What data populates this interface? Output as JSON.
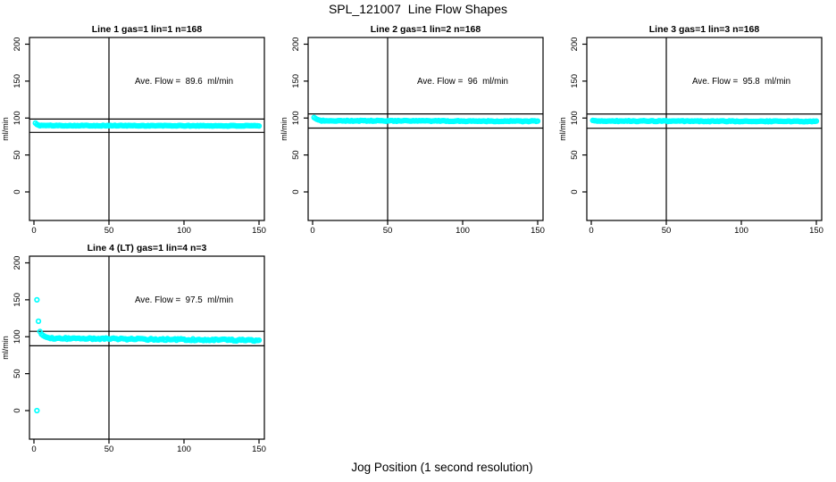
{
  "figure": {
    "title": "SPL_121007  Line Flow Shapes",
    "xlabel": "Jog Position (1 second resolution)",
    "background_color": "#FFFFFF",
    "axis_color": "#000000",
    "marker_color": "#00FFFF"
  },
  "chart_data": [
    {
      "type": "scatter",
      "title": "Line 1 gas=1 lin=1 n=168",
      "annotation": "Ave. Flow =  89.6  ml/min",
      "annotation_pos": {
        "x": 100,
        "y": 150
      },
      "ave_flow": 89.6,
      "n": 168,
      "xlim": [
        0,
        150
      ],
      "ylim": [
        0,
        200
      ],
      "xticks": [
        0,
        50,
        100,
        150
      ],
      "yticks": [
        0,
        50,
        100,
        150,
        200
      ],
      "ylabel": "ml/min",
      "grid": false,
      "vline_x": 50,
      "hlines_y": [
        98.6,
        80.6
      ],
      "series": {
        "name": "flow",
        "marker": "open-circle",
        "color": "#00FFFF",
        "x_step": 1,
        "lead_points": [
          [
            1,
            93.2
          ],
          [
            2,
            91.3
          ],
          [
            3,
            90.4
          ]
        ],
        "steady_x_start": 4,
        "steady_x_end": 150,
        "steady_y_start": 89.9,
        "steady_y_end": 89.4,
        "noise_amp": 0.45,
        "outlier_points": []
      }
    },
    {
      "type": "scatter",
      "title": "Line 2 gas=1 lin=2 n=168",
      "annotation": "Ave. Flow =  96  ml/min",
      "annotation_pos": {
        "x": 100,
        "y": 150
      },
      "ave_flow": 96,
      "n": 168,
      "xlim": [
        0,
        150
      ],
      "ylim": [
        0,
        200
      ],
      "xticks": [
        0,
        50,
        100,
        150
      ],
      "yticks": [
        0,
        50,
        100,
        150,
        200
      ],
      "ylabel": "ml/min",
      "grid": false,
      "vline_x": 50,
      "hlines_y": [
        105.6,
        86.4
      ],
      "series": {
        "name": "flow",
        "marker": "open-circle",
        "color": "#00FFFF",
        "x_step": 1,
        "lead_points": [
          [
            1,
            100.8
          ],
          [
            2,
            99.3
          ],
          [
            3,
            98.2
          ],
          [
            4,
            97.4
          ],
          [
            5,
            96.9
          ]
        ],
        "steady_x_start": 6,
        "steady_x_end": 150,
        "steady_y_start": 96.4,
        "steady_y_end": 95.7,
        "noise_amp": 0.6,
        "outlier_points": []
      }
    },
    {
      "type": "scatter",
      "title": "Line 3 gas=1 lin=3 n=168",
      "annotation": "Ave. Flow =  95.8  ml/min",
      "annotation_pos": {
        "x": 100,
        "y": 150
      },
      "ave_flow": 95.8,
      "n": 168,
      "xlim": [
        0,
        150
      ],
      "ylim": [
        0,
        200
      ],
      "xticks": [
        0,
        50,
        100,
        150
      ],
      "yticks": [
        0,
        50,
        100,
        150,
        200
      ],
      "ylabel": "ml/min",
      "grid": false,
      "vline_x": 50,
      "hlines_y": [
        105.4,
        86.2
      ],
      "series": {
        "name": "flow",
        "marker": "open-circle",
        "color": "#00FFFF",
        "x_step": 1,
        "lead_points": [
          [
            1,
            96.8
          ]
        ],
        "steady_x_start": 2,
        "steady_x_end": 150,
        "steady_y_start": 96.0,
        "steady_y_end": 95.5,
        "noise_amp": 0.55,
        "outlier_points": []
      }
    },
    {
      "type": "scatter",
      "title": "Line 4 (LT) gas=1 lin=4 n=3",
      "annotation": "Ave. Flow =  97.5  ml/min",
      "annotation_pos": {
        "x": 100,
        "y": 150
      },
      "ave_flow": 97.5,
      "n": 3,
      "xlim": [
        0,
        150
      ],
      "ylim": [
        0,
        200
      ],
      "xticks": [
        0,
        50,
        100,
        150
      ],
      "yticks": [
        0,
        50,
        100,
        150,
        200
      ],
      "ylabel": "ml/min",
      "grid": false,
      "vline_x": 50,
      "hlines_y": [
        107.3,
        87.8
      ],
      "series": {
        "name": "flow",
        "marker": "open-circle",
        "color": "#00FFFF",
        "x_step": 1,
        "lead_points": [
          [
            4,
            107.0
          ],
          [
            5,
            103.5
          ],
          [
            6,
            101.8
          ],
          [
            7,
            100.6
          ],
          [
            8,
            99.6
          ],
          [
            9,
            99.0
          ],
          [
            10,
            98.4
          ]
        ],
        "steady_x_start": 11,
        "steady_x_end": 150,
        "steady_y_start": 97.9,
        "steady_y_end": 95.2,
        "noise_amp": 1.1,
        "outlier_points": [
          [
            2,
            0
          ],
          [
            2,
            150
          ],
          [
            3,
            121
          ]
        ]
      }
    }
  ]
}
